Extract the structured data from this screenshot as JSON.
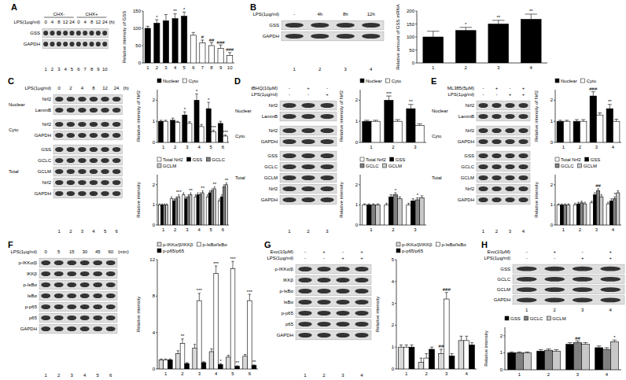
{
  "chart_data": [
    {
      "type": "bar",
      "ylabel": "Relative intensity of GSS",
      "categories": [
        "1",
        "2",
        "3",
        "4",
        "5",
        "6",
        "7",
        "8",
        "9",
        "10"
      ],
      "values": [
        100,
        115,
        122,
        128,
        135,
        80,
        58,
        50,
        42,
        22
      ],
      "errors": [
        6,
        10,
        18,
        14,
        12,
        8,
        8,
        9,
        10,
        8
      ],
      "annotations": [
        null,
        "*",
        null,
        "**",
        "*",
        null,
        "#",
        "##",
        "###",
        "###"
      ],
      "colors": [
        "#000000",
        "#000000",
        "#000000",
        "#000000",
        "#000000",
        "#ffffff",
        "#ffffff",
        "#ffffff",
        "#ffffff",
        "#ffffff"
      ],
      "ylim": [
        0,
        150
      ],
      "yticks": [
        0,
        50,
        100,
        150
      ]
    },
    {
      "type": "bar",
      "ylabel": "Relative amount of GSS mRNA",
      "categories": [
        "1",
        "2",
        "3",
        "4"
      ],
      "values": [
        100,
        125,
        150,
        168
      ],
      "errors": [
        22,
        12,
        14,
        20
      ],
      "annotations": [
        null,
        "*",
        "**",
        "**"
      ],
      "color": "#000000",
      "ylim": [
        0,
        200
      ],
      "yticks": [
        0,
        50,
        100,
        150,
        200
      ]
    },
    {
      "type": "bar",
      "ylabel": "Relative intensity of Nrf2",
      "categories": [
        "1",
        "2",
        "3",
        "4",
        "5",
        "6"
      ],
      "series": [
        {
          "name": "Nuclear",
          "color": "#000000",
          "values": [
            1,
            1.05,
            1.3,
            2.0,
            1.6,
            0.9
          ],
          "errors": [
            0.05,
            0.1,
            0.15,
            0.3,
            0.3,
            0.1
          ],
          "annotations": [
            null,
            null,
            "*",
            "*",
            "*",
            null
          ]
        },
        {
          "name": "Cyto",
          "color": "#ffffff",
          "values": [
            1,
            0.95,
            0.9,
            0.75,
            0.5,
            0.3
          ],
          "errors": [
            0.05,
            0.05,
            0.08,
            0.1,
            0.08,
            0.05
          ],
          "annotations": [
            null,
            null,
            null,
            null,
            "***",
            "***"
          ]
        }
      ],
      "ylim": [
        0,
        2.5
      ],
      "yticks": [
        0,
        1,
        2
      ],
      "legend": "top"
    },
    {
      "type": "bar",
      "ylabel": "Relative intensity",
      "categories": [
        "1",
        "2",
        "3",
        "4",
        "5",
        "6"
      ],
      "series": [
        {
          "name": "Total Nrf2",
          "color": "#ffffff",
          "values": [
            1,
            1.3,
            1.5,
            1.4,
            1.4,
            1.2
          ],
          "errors": [
            0.05,
            0.1,
            0.1,
            0.1,
            0.1,
            0.1
          ]
        },
        {
          "name": "GSS",
          "color": "#000000",
          "values": [
            1,
            1.2,
            1.3,
            1.5,
            1.6,
            1.4
          ],
          "errors": [
            0.05,
            0.1,
            0.1,
            0.1,
            0.1,
            0.1
          ]
        },
        {
          "name": "GCLC",
          "color": "#808080",
          "values": [
            1,
            1.3,
            1.4,
            1.5,
            1.7,
            1.9
          ],
          "errors": [
            0.05,
            0.1,
            0.1,
            0.1,
            0.1,
            0.1
          ]
        },
        {
          "name": "GCLM",
          "color": "#c8c8c8",
          "values": [
            1,
            1.4,
            1.5,
            1.6,
            1.8,
            2.0
          ],
          "errors": [
            0.05,
            0.1,
            0.1,
            0.1,
            0.1,
            0.1
          ],
          "annotations": [
            null,
            "***",
            "**",
            "**",
            "**",
            "**"
          ]
        }
      ],
      "ylim": [
        0,
        2.5
      ],
      "yticks": [
        0,
        1,
        2
      ],
      "legend": "top"
    },
    {
      "type": "bar",
      "ylabel": "Relative intensity of Nrf2",
      "categories": [
        "1",
        "2",
        "3"
      ],
      "series": [
        {
          "name": "Nuclear",
          "color": "#000000",
          "values": [
            1,
            2.0,
            1.6
          ],
          "errors": [
            0.05,
            0.2,
            0.2
          ],
          "annotations": [
            null,
            "***",
            "**"
          ]
        },
        {
          "name": "Cyto",
          "color": "#ffffff",
          "values": [
            1,
            1.0,
            0.8
          ],
          "errors": [
            0.05,
            0.08,
            0.08
          ]
        }
      ],
      "ylim": [
        0,
        2.5
      ],
      "yticks": [
        0,
        1,
        2
      ],
      "legend": "top"
    },
    {
      "type": "bar",
      "ylabel": "Relative intensity",
      "categories": [
        "1",
        "2",
        "3"
      ],
      "series": [
        {
          "name": "Total Nrf2",
          "color": "#ffffff",
          "values": [
            1,
            1.0,
            1.0
          ],
          "errors": [
            0.05,
            0.08,
            0.08
          ]
        },
        {
          "name": "GSS",
          "color": "#000000",
          "values": [
            1,
            1.4,
            1.2
          ],
          "errors": [
            0.05,
            0.1,
            0.1
          ]
        },
        {
          "name": "GCLC",
          "color": "#808080",
          "values": [
            1,
            1.5,
            1.25
          ],
          "errors": [
            0.05,
            0.1,
            0.1
          ],
          "annotations": [
            null,
            "*",
            "*"
          ]
        },
        {
          "name": "GCLM",
          "color": "#c8c8c8",
          "values": [
            1,
            1.3,
            1.35
          ],
          "errors": [
            0.05,
            0.1,
            0.1
          ]
        }
      ],
      "ylim": [
        0,
        2.5
      ],
      "yticks": [
        0,
        1,
        2
      ],
      "legend": "top"
    },
    {
      "type": "bar",
      "ylabel": "Relative intensity of Nrf2",
      "categories": [
        "1",
        "2",
        "3",
        "4"
      ],
      "series": [
        {
          "name": "Nuclear",
          "color": "#000000",
          "values": [
            1,
            1,
            2.2,
            1.6
          ],
          "errors": [
            0.05,
            0.08,
            0.2,
            0.2
          ],
          "annotations": [
            null,
            null,
            "###",
            "**"
          ]
        },
        {
          "name": "Cyto",
          "color": "#ffffff",
          "values": [
            1,
            1,
            1.3,
            1.0
          ],
          "errors": [
            0.05,
            0.08,
            0.1,
            0.1
          ]
        }
      ],
      "ylim": [
        0,
        2.5
      ],
      "yticks": [
        0,
        1,
        2
      ],
      "legend": "top"
    },
    {
      "type": "bar",
      "ylabel": "Relative intensity",
      "categories": [
        "1",
        "2",
        "3",
        "4"
      ],
      "series": [
        {
          "name": "Total Nrf2",
          "color": "#ffffff",
          "values": [
            1,
            1,
            1.1,
            1.05
          ],
          "errors": [
            0.05,
            0.08,
            0.08,
            0.08
          ]
        },
        {
          "name": "GSS",
          "color": "#000000",
          "values": [
            1,
            1.05,
            1.5,
            1.2
          ],
          "errors": [
            0.05,
            0.08,
            0.1,
            0.1
          ]
        },
        {
          "name": "GCLC",
          "color": "#808080",
          "values": [
            1,
            1.1,
            1.7,
            1.3
          ],
          "errors": [
            0.05,
            0.08,
            0.1,
            0.1
          ],
          "annotations": [
            null,
            null,
            "##",
            "*"
          ]
        },
        {
          "name": "GCLM",
          "color": "#c8c8c8",
          "values": [
            1,
            1.05,
            1.4,
            1.6
          ],
          "errors": [
            0.05,
            0.08,
            0.1,
            0.1
          ]
        }
      ],
      "ylim": [
        0,
        2.5
      ],
      "yticks": [
        0,
        1,
        2
      ],
      "legend": "top"
    },
    {
      "type": "bar",
      "ylabel": "Relative intensity",
      "categories": [
        "1",
        "2",
        "3",
        "4",
        "5",
        "6"
      ],
      "series": [
        {
          "name": "p-IKKα/β/IKKβ",
          "color": "#d9d9d9",
          "values": [
            1,
            1.7,
            2.3,
            1.9,
            1.3,
            1.4
          ],
          "errors": [
            0.1,
            0.3,
            0.4,
            0.3,
            0.2,
            0.2
          ]
        },
        {
          "name": "p-IκBα/IκBα",
          "color": "#ffffff",
          "values": [
            1,
            2.8,
            7.5,
            10.5,
            11,
            7.5
          ],
          "errors": [
            0.1,
            0.5,
            0.8,
            0.8,
            0.8,
            0.7
          ],
          "annotations": [
            null,
            "**",
            "***",
            "***",
            "***",
            "***"
          ]
        },
        {
          "name": "p-p65/p65",
          "color": "#000000",
          "values": [
            1,
            0.6,
            0.7,
            0.5,
            0.3,
            0.4
          ],
          "errors": [
            0.1,
            0.1,
            0.1,
            0.1,
            0.05,
            0.05
          ],
          "annotations": [
            null,
            null,
            null,
            "*",
            "**",
            "**"
          ]
        }
      ],
      "ylim": [
        0,
        12
      ],
      "yticks": [
        0,
        4,
        8,
        12
      ],
      "legend": "top"
    },
    {
      "type": "bar",
      "ylabel": "Relative intensity",
      "categories": [
        "1",
        "2",
        "3",
        "4"
      ],
      "series": [
        {
          "name": "p-IKKα/β/IKKβ",
          "color": "#d9d9d9",
          "values": [
            1,
            0.3,
            0.7,
            1.3
          ],
          "errors": [
            0.1,
            0.2,
            0.2,
            0.2
          ],
          "annotations": [
            null,
            null,
            "##",
            null
          ]
        },
        {
          "name": "p-IκBα/IκBα",
          "color": "#ffffff",
          "values": [
            1,
            0.5,
            3.2,
            1.3
          ],
          "errors": [
            0.1,
            0.2,
            0.3,
            0.2
          ],
          "annotations": [
            null,
            null,
            "###",
            null
          ]
        },
        {
          "name": "p-p65/p65",
          "color": "#000000",
          "values": [
            1,
            0.9,
            0.6,
            1.1
          ],
          "errors": [
            0.1,
            0.1,
            0.1,
            0.1
          ]
        }
      ],
      "ylim": [
        0,
        5
      ],
      "yticks": [
        0,
        1,
        2,
        3,
        4,
        5
      ],
      "legend": "top"
    },
    {
      "type": "bar",
      "ylabel": "Relative intensity",
      "categories": [
        "1",
        "2",
        "3",
        "4"
      ],
      "series": [
        {
          "name": "GSS",
          "color": "#000000",
          "values": [
            1,
            1.1,
            1.5,
            1.3
          ],
          "errors": [
            0.05,
            0.08,
            0.1,
            0.1
          ]
        },
        {
          "name": "GCLC",
          "color": "#808080",
          "values": [
            1,
            1.15,
            1.6,
            1.2
          ],
          "errors": [
            0.05,
            0.08,
            0.1,
            0.1
          ],
          "annotations": [
            null,
            null,
            "##",
            null
          ]
        },
        {
          "name": "GCLM",
          "color": "#c8c8c8",
          "values": [
            1,
            1.1,
            1.5,
            1.65
          ],
          "errors": [
            0.05,
            0.08,
            0.1,
            0.1
          ],
          "annotations": [
            null,
            null,
            null,
            "*"
          ]
        }
      ],
      "ylim": [
        0,
        2.5
      ],
      "yticks": [
        0,
        1,
        2
      ],
      "legend": "top"
    }
  ],
  "blots": [
    {
      "panel": "A",
      "groups": [
        {
          "label": "CHX-",
          "span": 5
        },
        {
          "label": "CHX+",
          "span": 5
        }
      ],
      "headers": [
        {
          "label": "LPS(1μg/ml)",
          "cells": [
            "0",
            "4",
            "8",
            "12",
            "24",
            "0",
            "4",
            "8",
            "12",
            "24"
          ],
          "unit": "(h)"
        }
      ],
      "bands": [
        "GSS",
        "GAPDH"
      ],
      "lanes": [
        "1",
        "2",
        "3",
        "4",
        "5",
        "6",
        "7",
        "8",
        "9",
        "10"
      ]
    },
    {
      "panel": "B",
      "headers": [
        {
          "label": "LPS(1μg/ml)",
          "cells": [
            "-",
            "4h",
            "8h",
            "12h"
          ]
        }
      ],
      "bands": [
        "GSS",
        "GAPDH"
      ],
      "lanes": [
        "1",
        "2",
        "3",
        "4"
      ]
    },
    {
      "panel": "C",
      "headers": [
        {
          "label": "LPS(1μg/ml)",
          "cells": [
            "0",
            "2",
            "4",
            "8",
            "12",
            "24"
          ],
          "unit": "(h)"
        }
      ],
      "sections": [
        {
          "label": "Nuclear",
          "bands": [
            "Nrf2",
            "LaminB"
          ]
        },
        {
          "label": "Cyto",
          "bands": [
            "Nrf2",
            "GAPDH"
          ]
        },
        {
          "label": "Total",
          "bands": [
            "GSS",
            "GCLC",
            "GCLM",
            "Nrf2",
            "GAPDH"
          ]
        }
      ],
      "lanes": [
        "1",
        "2",
        "3",
        "4",
        "5",
        "6"
      ]
    },
    {
      "panel": "D",
      "headers": [
        {
          "label": "tBHQ(10μM)",
          "cells": [
            "-",
            "+",
            "-"
          ]
        },
        {
          "label": "LPS(1μg/ml)",
          "cells": [
            "-",
            "-",
            "+"
          ]
        }
      ],
      "sections": [
        {
          "label": "Nuclear",
          "bands": [
            "Nrf2",
            "LaminB"
          ]
        },
        {
          "label": "Cyto",
          "bands": [
            "Nrf2",
            "GAPDH"
          ]
        },
        {
          "label": "Total",
          "bands": [
            "GSS",
            "GCLC",
            "GCLM",
            "Nrf2",
            "GAPDH"
          ]
        }
      ],
      "lanes": [
        "1",
        "2",
        "3"
      ]
    },
    {
      "panel": "E",
      "headers": [
        {
          "label": "ML385(5μM)",
          "cells": [
            "-",
            "+",
            "-",
            "+"
          ]
        },
        {
          "label": "LPS(1μg/ml)",
          "cells": [
            "-",
            "-",
            "+",
            "+"
          ]
        }
      ],
      "sections": [
        {
          "label": "Nuclear",
          "bands": [
            "Nrf2",
            "LaminB"
          ]
        },
        {
          "label": "Cyto",
          "bands": [
            "Nrf2",
            "GAPDH"
          ]
        },
        {
          "label": "Total",
          "bands": [
            "GSS",
            "GCLC",
            "GCLM",
            "Nrf2",
            "GAPDH"
          ]
        }
      ],
      "lanes": [
        "1",
        "2",
        "3",
        "4"
      ]
    },
    {
      "panel": "F",
      "headers": [
        {
          "label": "LPS(1μg/ml)",
          "cells": [
            "0",
            "5",
            "15",
            "30",
            "45",
            "60"
          ],
          "unit": "(min)"
        }
      ],
      "bands": [
        "p-IKKα/β",
        "IKKβ",
        "p-IκBα",
        "IκBα",
        "p-p65",
        "p65",
        "GAPDH"
      ],
      "lanes": [
        "1",
        "2",
        "3",
        "4",
        "5",
        "6"
      ]
    },
    {
      "panel": "G",
      "headers": [
        {
          "label": "Evo(10μM)",
          "cells": [
            "-",
            "+",
            "-",
            "+"
          ]
        },
        {
          "label": "LPS(1μg/ml)",
          "cells": [
            "-",
            "-",
            "+",
            "+"
          ]
        }
      ],
      "bands": [
        "p-IKKα/β",
        "IKKβ",
        "p-IκBα",
        "IκBα",
        "p-p65",
        "p65",
        "GAPDH"
      ],
      "lanes": [
        "1",
        "2",
        "3",
        "4"
      ]
    },
    {
      "panel": "H",
      "headers": [
        {
          "label": "Evo(10μM)",
          "cells": [
            "-",
            "+",
            "-",
            "+"
          ]
        },
        {
          "label": "LPS(1μg/ml)",
          "cells": [
            "-",
            "-",
            "+",
            "+"
          ]
        }
      ],
      "bands": [
        "GSS",
        "GCLC",
        "GCLM",
        "GAPDH"
      ],
      "lanes": [
        "1",
        "2",
        "3",
        "4"
      ]
    }
  ]
}
